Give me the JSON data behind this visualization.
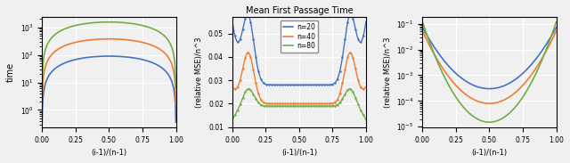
{
  "title": "Mean First Passage Time",
  "xlabel": "(i-1)/(n-1)",
  "ylabel_left": "time",
  "ylabel_mid": "(relative MSE)/n^3",
  "ylabel_right": "(relative MSE)/n^3",
  "colors": {
    "n20": "#4472c4",
    "n40": "#ed7d31",
    "n80": "#70ad47"
  },
  "legend_labels": [
    "n=20",
    "n=40",
    "n=80"
  ],
  "n_values": [
    20,
    40,
    80
  ],
  "background_color": "#f0f0f0",
  "grid_color": "#ffffff",
  "fig_bg": "#f5f5f5"
}
